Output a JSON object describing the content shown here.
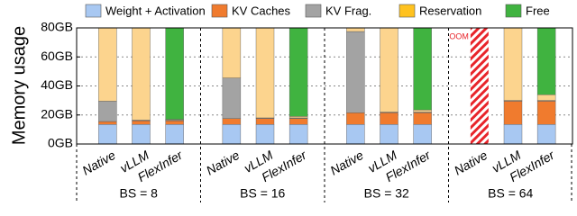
{
  "chart_data": {
    "type": "stacked_bar",
    "y_label": "Memory usage",
    "categories": [
      "Native",
      "vLLM",
      "FlexInfer",
      "Native",
      "vLLM",
      "FlexInfer",
      "Native",
      "vLLM",
      "FlexInfer",
      "Native",
      "vLLM",
      "FlexInfer"
    ],
    "groups": [
      "BS = 8",
      "BS = 16",
      "BS = 32",
      "BS = 64"
    ],
    "series": [
      {
        "name": "Weight + Activation",
        "color": "#a8c8f2",
        "values": [
          13.5,
          13.5,
          13.5,
          13.5,
          13.5,
          13.5,
          13.5,
          13.5,
          13.5,
          null,
          13.5,
          13.5
        ]
      },
      {
        "name": "KV Caches",
        "color": "#f07b2e",
        "values": [
          2,
          2.5,
          2.5,
          4,
          4,
          4,
          8,
          8,
          8,
          null,
          16,
          16
        ]
      },
      {
        "name": "KV Frag.",
        "color": "#a3a3a3",
        "values": [
          14,
          0.5,
          0.5,
          28,
          0.5,
          0.5,
          56,
          0.5,
          0.5,
          null,
          0.5,
          0.5
        ]
      },
      {
        "name": "Reservation",
        "color": "#fcd48e",
        "values": [
          50.5,
          63.5,
          0.5,
          34.5,
          62,
          1,
          2.5,
          58,
          1.5,
          null,
          50,
          4
        ]
      },
      {
        "name": "Free",
        "color": "#40b340",
        "values": [
          0,
          0,
          63,
          0,
          0,
          61,
          0,
          0,
          56.5,
          null,
          0,
          46
        ]
      }
    ],
    "legend_colors": [
      "#a8c8f2",
      "#f07b2e",
      "#a3a3a3",
      "#ffc21f",
      "#40b340"
    ],
    "annotations": [
      {
        "text": "OOM",
        "color": "#e8242a"
      }
    ],
    "ylim": [
      0,
      80
    ],
    "yticks": [
      {
        "value": 0,
        "label": "0GB"
      },
      {
        "value": 20,
        "label": "20GB"
      },
      {
        "value": 40,
        "label": "40GB"
      },
      {
        "value": 60,
        "label": "60GB"
      },
      {
        "value": 80,
        "label": "80GB"
      }
    ],
    "grid": true
  }
}
